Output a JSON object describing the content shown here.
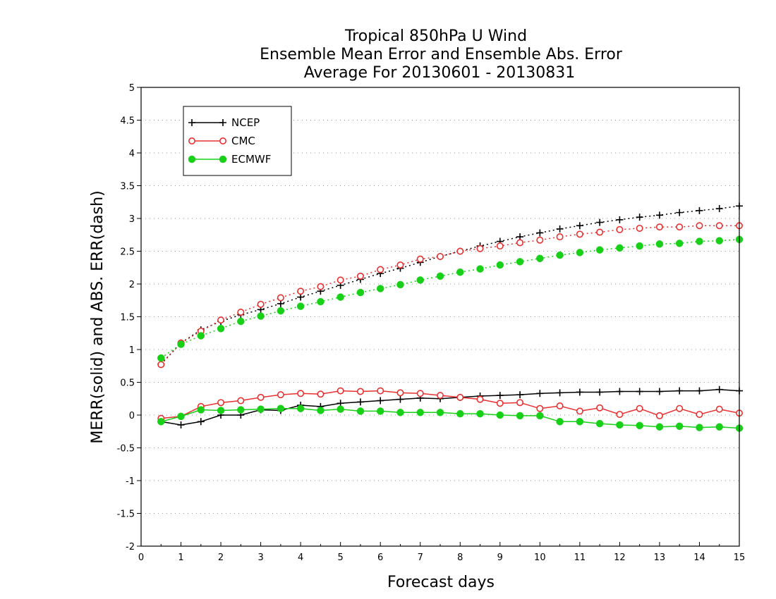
{
  "chart_data": {
    "type": "line",
    "title_lines": [
      "Tropical 850hPa U Wind",
      "Ensemble Mean Error and Ensemble Abs. Error",
      "Average For 20130601 - 20130831"
    ],
    "xlabel": "Forecast days",
    "ylabel": "MERR(solid) and ABS. ERR(dash)",
    "xlim": [
      0,
      15
    ],
    "ylim": [
      -2,
      5
    ],
    "x_ticks": [
      "0",
      "1",
      "2",
      "3",
      "4",
      "5",
      "6",
      "7",
      "8",
      "9",
      "10",
      "11",
      "12",
      "13",
      "14",
      "15"
    ],
    "y_ticks": [
      "-2",
      "-1.5",
      "-1",
      "-0.5",
      "0",
      "0.5",
      "1",
      "1.5",
      "2",
      "2.5",
      "3",
      "3.5",
      "4",
      "4.5",
      "5"
    ],
    "grid": "horizontal dotted",
    "legend_position": "top-left",
    "x": [
      0.5,
      1,
      1.5,
      2,
      2.5,
      3,
      3.5,
      4,
      4.5,
      5,
      5.5,
      6,
      6.5,
      7,
      7.5,
      8,
      8.5,
      9,
      9.5,
      10,
      10.5,
      11,
      11.5,
      12,
      12.5,
      13,
      13.5,
      14,
      14.5,
      15
    ],
    "series": [
      {
        "name": "NCEP",
        "color": "#000000",
        "marker": "plus",
        "merr": [
          -0.1,
          -0.15,
          -0.1,
          0.0,
          0.0,
          0.08,
          0.07,
          0.15,
          0.13,
          0.18,
          0.2,
          0.22,
          0.24,
          0.26,
          0.25,
          0.27,
          0.29,
          0.3,
          0.31,
          0.33,
          0.34,
          0.35,
          0.35,
          0.36,
          0.36,
          0.36,
          0.37,
          0.37,
          0.39,
          0.37
        ],
        "abs_err": [
          0.78,
          1.1,
          1.3,
          1.43,
          1.53,
          1.61,
          1.7,
          1.8,
          1.89,
          1.98,
          2.07,
          2.16,
          2.24,
          2.33,
          2.42,
          2.5,
          2.58,
          2.65,
          2.72,
          2.78,
          2.84,
          2.89,
          2.94,
          2.98,
          3.02,
          3.05,
          3.09,
          3.12,
          3.15,
          3.19
        ]
      },
      {
        "name": "CMC",
        "color": "#e83030",
        "marker": "open-circle",
        "merr": [
          -0.05,
          -0.02,
          0.13,
          0.19,
          0.22,
          0.27,
          0.31,
          0.33,
          0.32,
          0.37,
          0.36,
          0.37,
          0.34,
          0.33,
          0.3,
          0.27,
          0.24,
          0.18,
          0.19,
          0.1,
          0.14,
          0.06,
          0.11,
          0.01,
          0.1,
          -0.01,
          0.1,
          0.01,
          0.09,
          0.03
        ],
        "abs_err": [
          0.77,
          1.1,
          1.28,
          1.45,
          1.57,
          1.69,
          1.79,
          1.89,
          1.96,
          2.06,
          2.12,
          2.22,
          2.29,
          2.38,
          2.42,
          2.5,
          2.54,
          2.58,
          2.63,
          2.67,
          2.72,
          2.76,
          2.79,
          2.83,
          2.85,
          2.87,
          2.87,
          2.89,
          2.89,
          2.89
        ]
      },
      {
        "name": "ECMWF",
        "color": "#18d018",
        "marker": "filled-circle",
        "merr": [
          -0.1,
          -0.02,
          0.08,
          0.07,
          0.08,
          0.09,
          0.1,
          0.1,
          0.07,
          0.09,
          0.06,
          0.06,
          0.04,
          0.04,
          0.04,
          0.02,
          0.02,
          0.0,
          -0.01,
          -0.01,
          -0.1,
          -0.1,
          -0.13,
          -0.15,
          -0.16,
          -0.18,
          -0.17,
          -0.19,
          -0.18,
          -0.2
        ],
        "abs_err": [
          0.87,
          1.08,
          1.21,
          1.32,
          1.43,
          1.51,
          1.59,
          1.66,
          1.73,
          1.8,
          1.87,
          1.93,
          1.99,
          2.06,
          2.12,
          2.18,
          2.23,
          2.29,
          2.34,
          2.39,
          2.44,
          2.48,
          2.52,
          2.55,
          2.58,
          2.61,
          2.62,
          2.65,
          2.66,
          2.68
        ]
      }
    ]
  }
}
